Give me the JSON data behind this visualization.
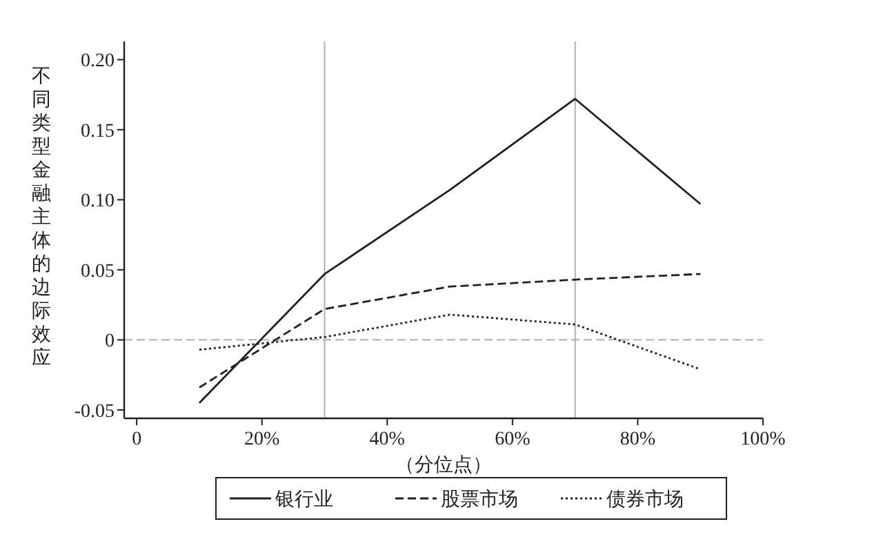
{
  "chart_data": {
    "type": "line",
    "xlabel": "（分位点）",
    "ylabel": "不同类型金融主体的边际效应",
    "x": [
      10,
      30,
      50,
      70,
      90
    ],
    "series": [
      {
        "name": "银行业",
        "color": "#231f20",
        "values": [
          -0.045,
          0.047,
          0.107,
          0.172,
          0.097
        ],
        "line_style": "solid"
      },
      {
        "name": "股票市场",
        "color": "#231f20",
        "values": [
          -0.034,
          0.022,
          0.038,
          0.043,
          0.047
        ],
        "line_style": "dashed"
      },
      {
        "name": "债券市场",
        "color": "#231f20",
        "values": [
          -0.007,
          0.002,
          0.018,
          0.011,
          -0.021
        ],
        "line_style": "dotted"
      }
    ],
    "xlim": [
      -2,
      100
    ],
    "xticks": [
      0,
      {
        "value": 20,
        "label": "20%"
      },
      {
        "value": 40,
        "label": "40%"
      },
      {
        "value": 60,
        "label": "60%"
      },
      {
        "value": 80,
        "label": "80%"
      },
      {
        "value": 100,
        "label": "100%"
      }
    ],
    "ylim": [
      -0.056,
      0.213
    ],
    "yticks": [
      {
        "value": -0.05,
        "label": "-0.05"
      },
      0,
      {
        "value": 0.05,
        "label": "0.05"
      },
      {
        "value": 0.1,
        "label": "0.10"
      },
      {
        "value": 0.15,
        "label": "0.15"
      },
      {
        "value": 0.2,
        "label": "0.20"
      }
    ],
    "ref_lines": [
      {
        "axis": "x",
        "value": 30,
        "color": "#b0b0b0",
        "line_style": "solid"
      },
      {
        "axis": "x",
        "value": 70,
        "color": "#b0b0b0",
        "line_style": "solid"
      },
      {
        "axis": "y",
        "value": 0,
        "color": "#b0b0b0",
        "line_style": "dashed"
      }
    ],
    "grid": false,
    "legend": "bottom",
    "marker": "none"
  }
}
